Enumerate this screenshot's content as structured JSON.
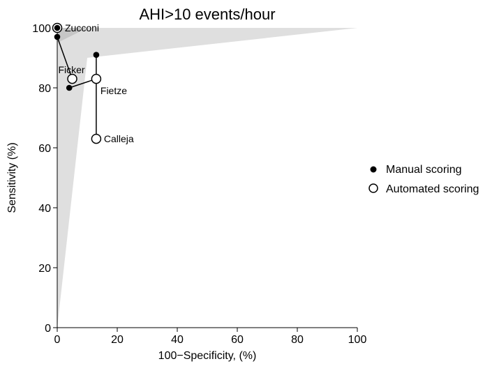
{
  "chart_data": {
    "type": "scatter",
    "title": "AHI>10 events/hour",
    "xlabel": "100−Specificity, (%)",
    "ylabel": "Sensitivity (%)",
    "xlim": [
      0,
      100
    ],
    "ylim": [
      0,
      100
    ],
    "xticks": [
      "0",
      "20",
      "40",
      "60",
      "80",
      "100"
    ],
    "yticks": [
      "0",
      "20",
      "40",
      "60",
      "80",
      "100"
    ],
    "grid": false,
    "legend_position": "right",
    "legend": [
      {
        "label": "Manual scoring",
        "marker": "filled"
      },
      {
        "label": "Automated scoring",
        "marker": "open"
      }
    ],
    "series": [
      {
        "name": "Manual scoring",
        "marker": "filled",
        "points": [
          {
            "study": "Zucconi",
            "x": 0,
            "y": 100
          },
          {
            "study": "Ficker",
            "x": 0,
            "y": 97
          },
          {
            "study": "Fietze",
            "x": 4,
            "y": 80
          },
          {
            "study": "Calleja",
            "x": 13,
            "y": 91
          }
        ]
      },
      {
        "name": "Automated scoring",
        "marker": "open",
        "points": [
          {
            "study": "Zucconi",
            "x": 0,
            "y": 100
          },
          {
            "study": "Ficker",
            "x": 5,
            "y": 83
          },
          {
            "study": "Fietze",
            "x": 13,
            "y": 83
          },
          {
            "study": "Calleja",
            "x": 13,
            "y": 63
          }
        ]
      }
    ],
    "study_labels": [
      "Zucconi",
      "Ficker",
      "Fietze",
      "Calleja"
    ],
    "confidence_regions": [
      {
        "name": "automated",
        "polygon": [
          [
            0,
            100
          ],
          [
            100,
            100
          ],
          [
            10,
            90
          ],
          [
            0,
            0
          ]
        ],
        "color": "#d4d4d4"
      },
      {
        "name": "manual",
        "polygon": [
          [
            0,
            100
          ],
          [
            10,
            100
          ],
          [
            0,
            95
          ]
        ],
        "color": "#bdbdbd"
      }
    ],
    "colors": {
      "marker": "#000000",
      "line": "#000000",
      "axis": "#000000"
    }
  }
}
